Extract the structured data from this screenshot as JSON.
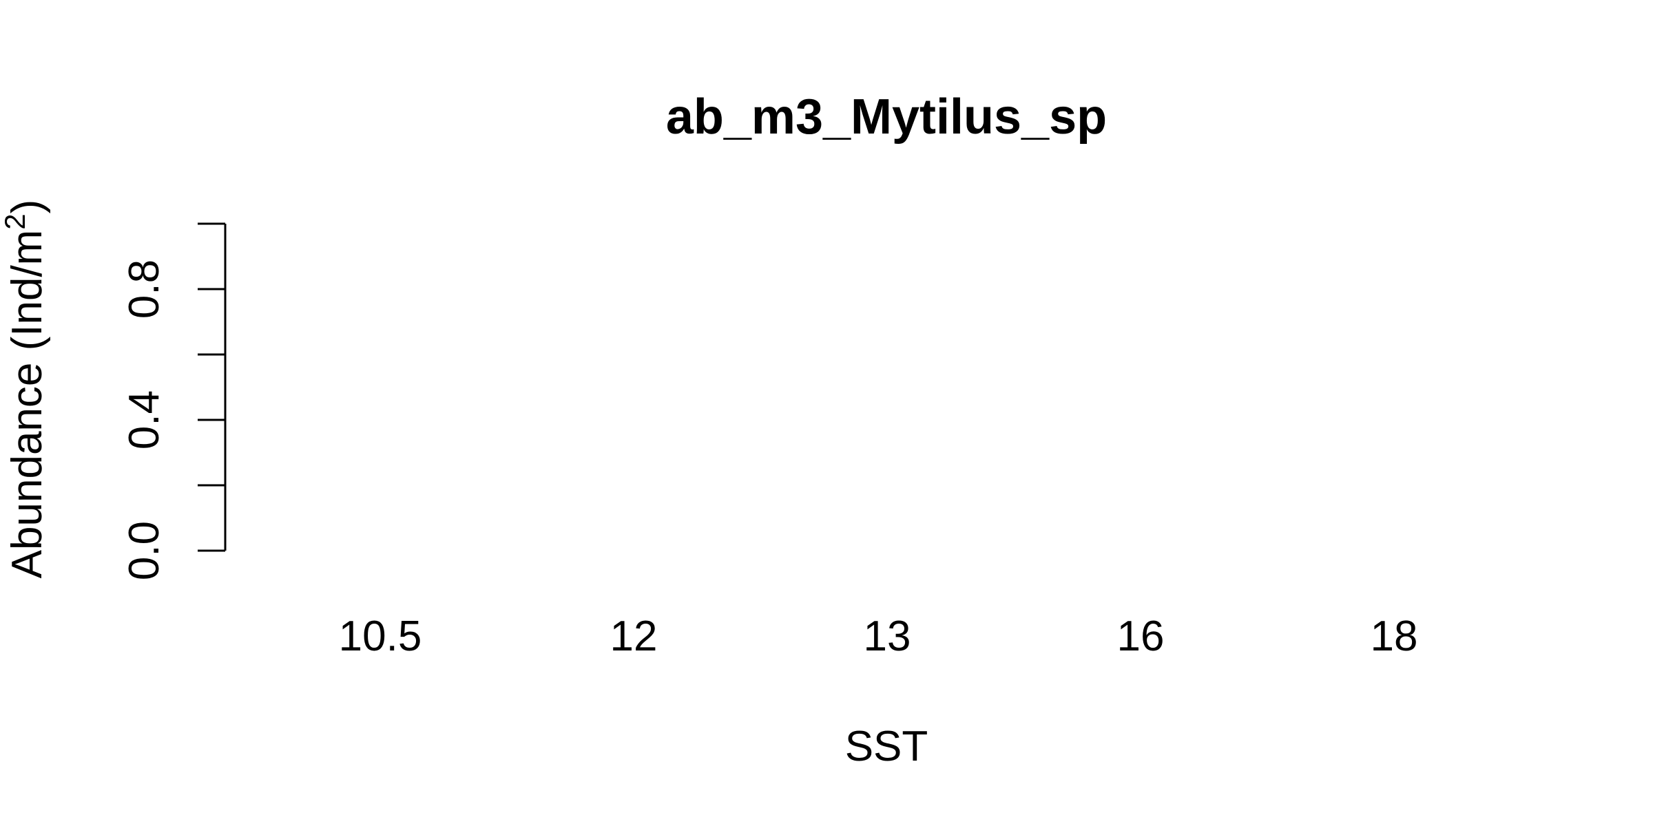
{
  "chart_data": {
    "type": "bar",
    "title": "ab_m3_Mytilus_sp",
    "xlabel": "SST",
    "ylabel_main": "Abundance (Ind/m",
    "ylabel_superscript": "2",
    "ylabel_close": ")",
    "categories": [
      "10.5",
      "12",
      "13",
      "16",
      "18"
    ],
    "values": [
      0,
      0,
      0,
      0,
      0
    ],
    "ylim": [
      0,
      1
    ],
    "y_ticks": [
      0.0,
      0.2,
      0.4,
      0.6,
      0.8,
      1.0
    ],
    "y_tick_labels": [
      "0.0",
      "",
      "0.4",
      "",
      "0.8",
      ""
    ],
    "grid": false,
    "legend": "none",
    "colors": {
      "text": "#000000",
      "axis": "#000000",
      "background": "#ffffff"
    }
  }
}
